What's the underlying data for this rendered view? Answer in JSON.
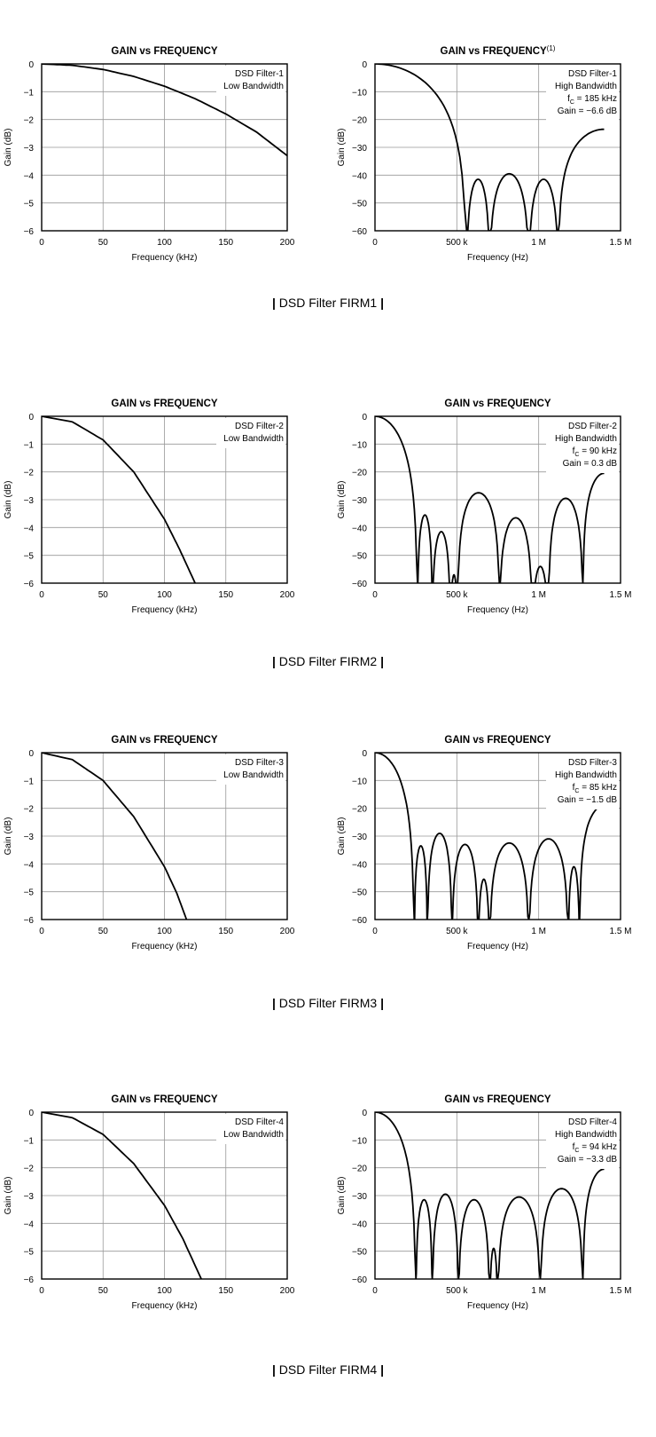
{
  "figures": [
    {
      "caption": "DSD Filter FIRM1",
      "charts": [
        {
          "type": "line",
          "title": "GAIN vs FREQUENCY",
          "title_sup": "",
          "xlabel": "Frequency (kHz)",
          "ylabel": "Gain (dB)",
          "xlim": [
            0,
            200
          ],
          "ylim": [
            -6,
            0
          ],
          "xticks": [
            0,
            50,
            100,
            150,
            200
          ],
          "xtick_labels": [
            "0",
            "50",
            "100",
            "150",
            "200"
          ],
          "yticks": [
            0,
            -1,
            -2,
            -3,
            -4,
            -5,
            -6
          ],
          "ytick_labels": [
            "0",
            "−1",
            "−2",
            "−3",
            "−4",
            "−5",
            "−6"
          ],
          "grid": true,
          "legend_position": "top-right",
          "annotation": [
            "DSD Filter-1",
            "Low Bandwidth"
          ],
          "series": [
            {
              "x": [
                0,
                25,
                50,
                75,
                100,
                125,
                150,
                175,
                200
              ],
              "y": [
                0,
                -0.05,
                -0.2,
                -0.45,
                -0.8,
                -1.25,
                -1.8,
                -2.45,
                -3.3
              ]
            }
          ]
        },
        {
          "type": "line",
          "title": "GAIN vs FREQUENCY",
          "title_sup": "(1)",
          "xlabel": "Frequency (Hz)",
          "ylabel": "Gain (dB)",
          "xlim": [
            0,
            1500000
          ],
          "ylim": [
            -60,
            0
          ],
          "xticks": [
            0,
            500000,
            1000000,
            1500000
          ],
          "xtick_labels": [
            "0",
            "500 k",
            "1 M",
            "1.5 M"
          ],
          "yticks": [
            0,
            -10,
            -20,
            -30,
            -40,
            -50,
            -60
          ],
          "ytick_labels": [
            "0",
            "−10",
            "−20",
            "−30",
            "−40",
            "−50",
            "−60"
          ],
          "grid": true,
          "legend_position": "top-right",
          "annotation": [
            "DSD Filter-1",
            "High Bandwidth",
            "fC = 185 kHz",
            "Gain = −6.6 dB"
          ],
          "zeros": [
            560000,
            700000,
            940000,
            1120000
          ],
          "lobe_peaks": [
            -41.5,
            -39.5,
            -41.5,
            -23.5
          ],
          "end_x": 1400000,
          "series": []
        }
      ]
    },
    {
      "caption": "DSD Filter FIRM2",
      "charts": [
        {
          "type": "line",
          "title": "GAIN vs FREQUENCY",
          "title_sup": "",
          "xlabel": "Frequency (kHz)",
          "ylabel": "Gain (dB)",
          "xlim": [
            0,
            200
          ],
          "ylim": [
            -6,
            0
          ],
          "xticks": [
            0,
            50,
            100,
            150,
            200
          ],
          "xtick_labels": [
            "0",
            "50",
            "100",
            "150",
            "200"
          ],
          "yticks": [
            0,
            -1,
            -2,
            -3,
            -4,
            -5,
            -6
          ],
          "ytick_labels": [
            "0",
            "−1",
            "−2",
            "−3",
            "−4",
            "−5",
            "−6"
          ],
          "grid": true,
          "legend_position": "top-right",
          "annotation": [
            "DSD Filter-2",
            "Low Bandwidth"
          ],
          "series": [
            {
              "x": [
                0,
                25,
                50,
                75,
                100,
                112.5,
                125
              ],
              "y": [
                0,
                -0.2,
                -0.85,
                -2.0,
                -3.7,
                -4.8,
                -6.0
              ]
            }
          ]
        },
        {
          "type": "line",
          "title": "GAIN vs FREQUENCY",
          "title_sup": "",
          "xlabel": "Frequency (Hz)",
          "ylabel": "Gain (dB)",
          "xlim": [
            0,
            1500000
          ],
          "ylim": [
            -60,
            0
          ],
          "xticks": [
            0,
            500000,
            1000000,
            1500000
          ],
          "xtick_labels": [
            "0",
            "500 k",
            "1 M",
            "1.5 M"
          ],
          "yticks": [
            0,
            -10,
            -20,
            -30,
            -40,
            -50,
            -60
          ],
          "ytick_labels": [
            "0",
            "−10",
            "−20",
            "−30",
            "−40",
            "−50",
            "−60"
          ],
          "grid": true,
          "legend_position": "top-right",
          "annotation": [
            "DSD Filter-2",
            "High Bandwidth",
            "fC = 90 kHz",
            "Gain = 0.3 dB"
          ],
          "zeros": [
            260000,
            350000,
            460000,
            505000,
            760000,
            960000,
            1060000,
            1270000
          ],
          "lobe_peaks": [
            -35.5,
            -41.5,
            -57,
            -27.5,
            -36.5,
            -54,
            -29.5,
            -20.5
          ],
          "end_x": 1400000,
          "series": []
        }
      ]
    },
    {
      "caption": "DSD Filter FIRM3",
      "charts": [
        {
          "type": "line",
          "title": "GAIN vs FREQUENCY",
          "title_sup": "",
          "xlabel": "Frequency (kHz)",
          "ylabel": "Gain (dB)",
          "xlim": [
            0,
            200
          ],
          "ylim": [
            -6,
            0
          ],
          "xticks": [
            0,
            50,
            100,
            150,
            200
          ],
          "xtick_labels": [
            "0",
            "50",
            "100",
            "150",
            "200"
          ],
          "yticks": [
            0,
            -1,
            -2,
            -3,
            -4,
            -5,
            -6
          ],
          "ytick_labels": [
            "0",
            "−1",
            "−2",
            "−3",
            "−4",
            "−5",
            "−6"
          ],
          "grid": true,
          "legend_position": "top-right",
          "annotation": [
            "DSD Filter-3",
            "Low Bandwidth"
          ],
          "series": [
            {
              "x": [
                0,
                25,
                50,
                75,
                100,
                110,
                118
              ],
              "y": [
                0,
                -0.25,
                -1.0,
                -2.3,
                -4.1,
                -5.05,
                -6.0
              ]
            }
          ]
        },
        {
          "type": "line",
          "title": "GAIN vs FREQUENCY",
          "title_sup": "",
          "xlabel": "Frequency (Hz)",
          "ylabel": "Gain (dB)",
          "xlim": [
            0,
            1500000
          ],
          "ylim": [
            -60,
            0
          ],
          "xticks": [
            0,
            500000,
            1000000,
            1500000
          ],
          "xtick_labels": [
            "0",
            "500 k",
            "1 M",
            "1.5 M"
          ],
          "yticks": [
            0,
            -10,
            -20,
            -30,
            -40,
            -50,
            -60
          ],
          "ytick_labels": [
            "0",
            "−10",
            "−20",
            "−30",
            "−40",
            "−50",
            "−60"
          ],
          "grid": true,
          "legend_position": "top-right",
          "annotation": [
            "DSD Filter-3",
            "High Bandwidth",
            "fC = 85 kHz",
            "Gain = −1.5 dB"
          ],
          "zeros": [
            240000,
            320000,
            470000,
            630000,
            700000,
            940000,
            1180000,
            1250000
          ],
          "lobe_peaks": [
            -33.5,
            -29,
            -33,
            -45.5,
            -32.5,
            -31,
            -41,
            -19
          ],
          "end_x": 1400000,
          "series": []
        }
      ]
    },
    {
      "caption": "DSD Filter FIRM4",
      "charts": [
        {
          "type": "line",
          "title": "GAIN vs FREQUENCY",
          "title_sup": "",
          "xlabel": "Frequency (kHz)",
          "ylabel": "Gain (dB)",
          "xlim": [
            0,
            200
          ],
          "ylim": [
            -6,
            0
          ],
          "xticks": [
            0,
            50,
            100,
            150,
            200
          ],
          "xtick_labels": [
            "0",
            "50",
            "100",
            "150",
            "200"
          ],
          "yticks": [
            0,
            -1,
            -2,
            -3,
            -4,
            -5,
            -6
          ],
          "ytick_labels": [
            "0",
            "−1",
            "−2",
            "−3",
            "−4",
            "−5",
            "−6"
          ],
          "grid": true,
          "legend_position": "top-right",
          "annotation": [
            "DSD Filter-4",
            "Low Bandwidth"
          ],
          "series": [
            {
              "x": [
                0,
                25,
                50,
                75,
                100,
                115,
                130
              ],
              "y": [
                0,
                -0.2,
                -0.8,
                -1.85,
                -3.35,
                -4.55,
                -6.0
              ]
            }
          ]
        },
        {
          "type": "line",
          "title": "GAIN vs FREQUENCY",
          "title_sup": "",
          "xlabel": "Frequency (Hz)",
          "ylabel": "Gain (dB)",
          "xlim": [
            0,
            1500000
          ],
          "ylim": [
            -60,
            0
          ],
          "xticks": [
            0,
            500000,
            1000000,
            1500000
          ],
          "xtick_labels": [
            "0",
            "500 k",
            "1 M",
            "1.5 M"
          ],
          "yticks": [
            0,
            -10,
            -20,
            -30,
            -40,
            -50,
            -60
          ],
          "ytick_labels": [
            "0",
            "−10",
            "−20",
            "−30",
            "−40",
            "−50",
            "−60"
          ],
          "grid": true,
          "legend_position": "top-right",
          "annotation": [
            "DSD Filter-4",
            "High Bandwidth",
            "fC = 94 kHz",
            "Gain = −3.3 dB"
          ],
          "zeros": [
            250000,
            350000,
            510000,
            700000,
            750000,
            1010000,
            1270000
          ],
          "lobe_peaks": [
            -31.5,
            -29.5,
            -31.5,
            -49,
            -30.5,
            -27.5,
            -20.5
          ],
          "end_x": 1400000,
          "series": []
        }
      ]
    }
  ]
}
